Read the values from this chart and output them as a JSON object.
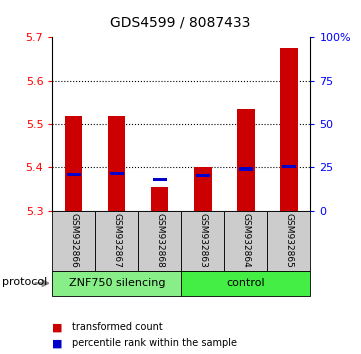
{
  "title": "GDS4599 / 8087433",
  "samples": [
    "GSM932866",
    "GSM932867",
    "GSM932868",
    "GSM932863",
    "GSM932864",
    "GSM932865"
  ],
  "red_values": [
    5.519,
    5.519,
    5.355,
    5.4,
    5.535,
    5.676
  ],
  "blue_values": [
    5.383,
    5.386,
    5.372,
    5.382,
    5.396,
    5.402
  ],
  "ylim": [
    5.3,
    5.7
  ],
  "yticks_left": [
    5.3,
    5.4,
    5.5,
    5.6,
    5.7
  ],
  "yticks_right": [
    0,
    25,
    50,
    75,
    100
  ],
  "ytick_right_labels": [
    "0",
    "25",
    "50",
    "75",
    "100%"
  ],
  "groups": [
    {
      "label": "ZNF750 silencing",
      "n": 3,
      "color": "#88ee88"
    },
    {
      "label": "control",
      "n": 3,
      "color": "#44ee44"
    }
  ],
  "protocol_label": "protocol",
  "legend_red": "transformed count",
  "legend_blue": "percentile rank within the sample",
  "bar_width": 0.4,
  "red_color": "#cc0000",
  "blue_color": "#0000cc",
  "sample_bg": "#cccccc",
  "title_fontsize": 10
}
